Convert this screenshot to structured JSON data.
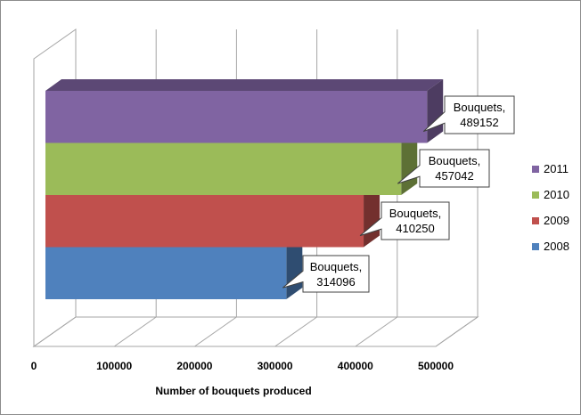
{
  "chart_data": {
    "type": "bar",
    "orientation": "horizontal",
    "style": "3d",
    "categories": [
      "Bouquets"
    ],
    "series": [
      {
        "name": "2008",
        "values": [
          314096
        ],
        "color": "#4f81bd"
      },
      {
        "name": "2009",
        "values": [
          410250
        ],
        "color": "#c0504d"
      },
      {
        "name": "2010",
        "values": [
          457042
        ],
        "color": "#9bbb59"
      },
      {
        "name": "2011",
        "values": [
          489152
        ],
        "color": "#8064a2"
      }
    ],
    "data_labels": [
      {
        "series": "2008",
        "category": "Bouquets",
        "value": "314096"
      },
      {
        "series": "2009",
        "category": "Bouquets",
        "value": "410250"
      },
      {
        "series": "2010",
        "category": "Bouquets",
        "value": "457042"
      },
      {
        "series": "2011",
        "category": "Bouquets",
        "value": "489152"
      }
    ],
    "title": "",
    "xlabel": "Number of bouquets produced",
    "ylabel": "",
    "xlim": [
      0,
      500000
    ],
    "x_ticks": [
      0,
      100000,
      200000,
      300000,
      400000,
      500000
    ],
    "x_tick_labels": [
      "0",
      "100000",
      "200000",
      "300000",
      "400000",
      "500000"
    ],
    "grid": true,
    "legend": {
      "position": "right",
      "entries": [
        "2011",
        "2010",
        "2009",
        "2008"
      ]
    }
  }
}
